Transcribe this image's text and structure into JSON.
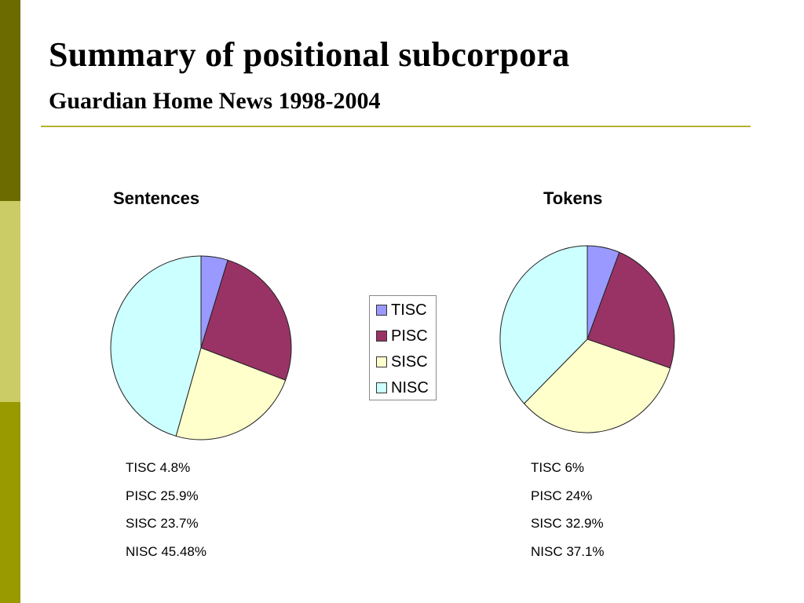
{
  "slide": {
    "title": "Summary of positional subcorpora",
    "subtitle": "Guardian Home News 1998-2004"
  },
  "colors": {
    "TISC": "#9999ff",
    "PISC": "#993366",
    "SISC": "#ffffcc",
    "NISC": "#ccffff",
    "accent_bar_top": "#6b6b00",
    "accent_bar_middle": "#cccc66",
    "accent_bar_bottom": "#999900",
    "rule": "#b8b030"
  },
  "legend": {
    "items": [
      "TISC",
      "PISC",
      "SISC",
      "NISC"
    ]
  },
  "chart_data": [
    {
      "type": "pie",
      "title": "Sentences",
      "categories": [
        "TISC",
        "PISC",
        "SISC",
        "NISC"
      ],
      "values": [
        4.8,
        25.9,
        23.7,
        45.48
      ],
      "value_labels": [
        "TISC 4.8%",
        "PISC 25.9%",
        "SISC 23.7%",
        "NISC 45.48%"
      ],
      "legend": "shared, between charts"
    },
    {
      "type": "pie",
      "title": "Tokens",
      "categories": [
        "TISC",
        "PISC",
        "SISC",
        "NISC"
      ],
      "values": [
        6,
        24,
        32.9,
        37.1
      ],
      "value_labels": [
        "TISC 6%",
        "PISC 24%",
        "SISC 32.9%",
        "NISC 37.1%"
      ],
      "legend": "shared, between charts"
    }
  ]
}
